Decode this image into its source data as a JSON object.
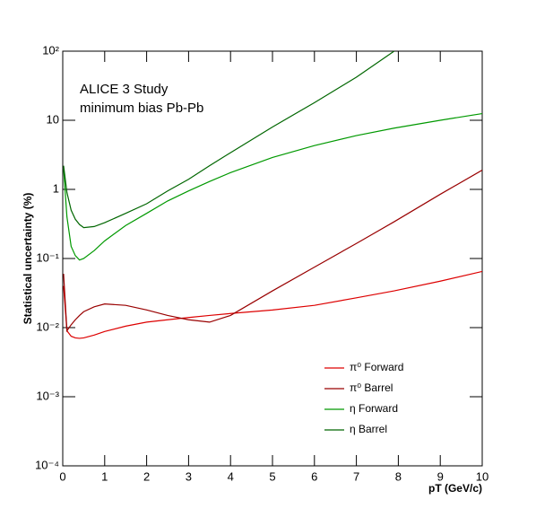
{
  "chart_data": {
    "type": "line",
    "annotations": [
      "ALICE 3 Study",
      "minimum bias Pb-Pb"
    ],
    "ylabel": "Statistical uncertainty (%)",
    "xlabel": "pT (GeV/c)",
    "ylog": true,
    "legend": "lower right",
    "x": [
      0.02,
      0.1,
      0.2,
      0.3,
      0.4,
      0.5,
      0.75,
      1,
      1.5,
      2,
      2.5,
      3,
      3.5,
      4,
      5,
      6,
      7,
      7.9,
      9,
      10
    ],
    "series": [
      {
        "name": "π⁰ Forward",
        "color": "#dd0000",
        "values": [
          0.04,
          0.009,
          0.0075,
          0.0071,
          0.007,
          0.0071,
          0.0078,
          0.0088,
          0.0105,
          0.012,
          0.013,
          0.014,
          0.015,
          0.016,
          0.018,
          0.021,
          0.027,
          0.034,
          0.047,
          0.065
        ]
      },
      {
        "name": "π⁰ Barrel",
        "color": "#990000",
        "values": [
          0.06,
          0.009,
          0.011,
          0.013,
          0.015,
          0.017,
          0.02,
          0.022,
          0.021,
          0.018,
          0.015,
          0.013,
          0.012,
          0.015,
          0.034,
          0.075,
          0.165,
          0.34,
          0.85,
          1.9
        ]
      },
      {
        "name": "η Forward",
        "color": "#009900",
        "values": [
          2.0,
          0.4,
          0.15,
          0.11,
          0.095,
          0.1,
          0.13,
          0.18,
          0.3,
          0.45,
          0.68,
          0.95,
          1.3,
          1.75,
          2.9,
          4.3,
          6,
          7.7,
          10,
          12.5
        ]
      },
      {
        "name": "η Barrel",
        "color": "#006600",
        "values": [
          2.2,
          0.9,
          0.5,
          0.37,
          0.31,
          0.28,
          0.29,
          0.33,
          0.45,
          0.62,
          0.95,
          1.4,
          2.2,
          3.4,
          8,
          18,
          42,
          100,
          null,
          null
        ]
      }
    ],
    "xlim": [
      0,
      10
    ],
    "xticks": [
      0,
      1,
      2,
      3,
      4,
      5,
      6,
      7,
      8,
      9,
      10
    ],
    "ylim": [
      0.0001,
      100
    ],
    "yticks": [
      {
        "value": 0.0001,
        "label": "10⁻⁴"
      },
      {
        "value": 0.001,
        "label": "10⁻³"
      },
      {
        "value": 0.01,
        "label": "10⁻²"
      },
      {
        "value": 0.1,
        "label": "10⁻¹"
      },
      1,
      10,
      {
        "value": 100,
        "label": "10²"
      }
    ]
  }
}
